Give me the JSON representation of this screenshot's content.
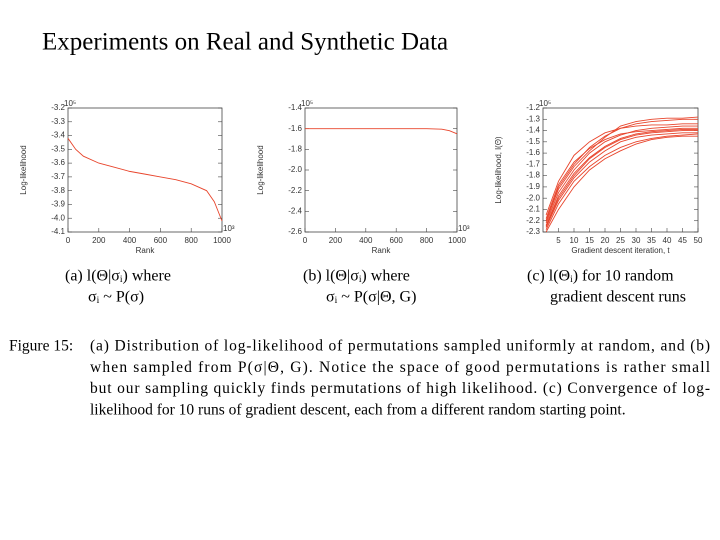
{
  "title": "Experiments on Real and Synthetic Data",
  "chart_data": [
    {
      "type": "line",
      "ylabel": "Log-likelihood",
      "xlabel": "Rank",
      "y_multiplier": "10⁵",
      "x_multiplier": "10³",
      "grid": false,
      "color": "#e8452c",
      "x": [
        0,
        50,
        100,
        200,
        300,
        400,
        500,
        600,
        700,
        800,
        900,
        950,
        1000
      ],
      "series": [
        {
          "values": [
            -3.42,
            -3.5,
            -3.55,
            -3.6,
            -3.63,
            -3.66,
            -3.68,
            -3.7,
            -3.72,
            -3.75,
            -3.8,
            -3.88,
            -4.02
          ]
        }
      ],
      "xlim": [
        0,
        1000
      ],
      "xticks": [
        0,
        200,
        400,
        600,
        800,
        1000
      ],
      "ylim": [
        -4.1,
        -3.2
      ],
      "yticks": [
        -3.2,
        -3.3,
        -3.4,
        -3.5,
        -3.6,
        -3.7,
        -3.8,
        -3.9,
        {
          "value": -4,
          "label": "-4.0"
        },
        -4.1
      ]
    },
    {
      "type": "line",
      "ylabel": "Log-likelihood",
      "xlabel": "Rank",
      "y_multiplier": "10⁵",
      "x_multiplier": "10³",
      "grid": false,
      "color": "#e8452c",
      "x": [
        0,
        100,
        200,
        300,
        400,
        500,
        600,
        700,
        800,
        900,
        950,
        1000
      ],
      "series": [
        {
          "values": [
            -1.6,
            -1.6,
            -1.6,
            -1.6,
            -1.6,
            -1.6,
            -1.6,
            -1.6,
            -1.6,
            -1.605,
            -1.62,
            -1.65
          ]
        }
      ],
      "xlim": [
        0,
        1000
      ],
      "xticks": [
        0,
        200,
        400,
        600,
        800,
        1000
      ],
      "ylim": [
        -2.6,
        -1.4
      ],
      "yticks": [
        -1.4,
        -1.6,
        -1.8,
        {
          "value": -2,
          "label": "-2.0"
        },
        -2.2,
        -2.4,
        -2.6
      ]
    },
    {
      "type": "line",
      "ylabel": "Log-likelihood, l(Θ)",
      "xlabel": "Gradient descent iteration, t",
      "y_multiplier": "10⁵",
      "grid": false,
      "color": "#e8452c",
      "x": [
        1,
        5,
        10,
        15,
        20,
        25,
        30,
        35,
        40,
        45,
        50
      ],
      "series": [
        {
          "values": [
            -2.25,
            -2.0,
            -1.8,
            -1.65,
            -1.55,
            -1.48,
            -1.44,
            -1.42,
            -1.41,
            -1.4,
            -1.4
          ]
        },
        {
          "values": [
            -2.2,
            -1.9,
            -1.7,
            -1.55,
            -1.45,
            -1.38,
            -1.34,
            -1.32,
            -1.31,
            -1.3,
            -1.3
          ]
        },
        {
          "values": [
            -2.28,
            -2.05,
            -1.85,
            -1.72,
            -1.62,
            -1.55,
            -1.5,
            -1.47,
            -1.45,
            -1.44,
            -1.43
          ]
        },
        {
          "values": [
            -2.15,
            -1.85,
            -1.62,
            -1.5,
            -1.42,
            -1.38,
            -1.36,
            -1.35,
            -1.35,
            -1.34,
            -1.34
          ]
        },
        {
          "values": [
            -2.3,
            -2.1,
            -1.9,
            -1.75,
            -1.65,
            -1.58,
            -1.52,
            -1.48,
            -1.46,
            -1.45,
            -1.45
          ]
        },
        {
          "values": [
            -2.22,
            -1.95,
            -1.75,
            -1.6,
            -1.5,
            -1.44,
            -1.4,
            -1.38,
            -1.37,
            -1.36,
            -1.36
          ]
        },
        {
          "values": [
            -2.18,
            -1.88,
            -1.68,
            -1.56,
            -1.48,
            -1.43,
            -1.41,
            -1.4,
            -1.39,
            -1.38,
            -1.38
          ]
        },
        {
          "values": [
            -2.26,
            -2.02,
            -1.82,
            -1.68,
            -1.58,
            -1.5,
            -1.46,
            -1.44,
            -1.43,
            -1.42,
            -1.42
          ]
        },
        {
          "values": [
            -2.2,
            -1.92,
            -1.72,
            -1.58,
            -1.46,
            -1.36,
            -1.32,
            -1.3,
            -1.29,
            -1.29,
            -1.28
          ]
        },
        {
          "values": [
            -2.24,
            -1.98,
            -1.78,
            -1.64,
            -1.54,
            -1.47,
            -1.43,
            -1.41,
            -1.4,
            -1.39,
            -1.39
          ]
        }
      ],
      "xlim": [
        0,
        50
      ],
      "xticks": [
        5,
        10,
        15,
        20,
        25,
        30,
        35,
        40,
        45,
        50
      ],
      "ylim": [
        -2.3,
        -1.2
      ],
      "yticks": [
        -1.2,
        -1.3,
        -1.4,
        -1.5,
        -1.6,
        -1.7,
        -1.8,
        -1.9,
        {
          "value": -2,
          "label": "-2.0"
        },
        -2.1,
        -2.2,
        -2.3
      ]
    }
  ],
  "subcaptions": [
    [
      "(a) l(Θ|σᵢ) where",
      "σᵢ ~ P(σ)"
    ],
    [
      "(b) l(Θ|σᵢ) where",
      "σᵢ ~ P(σ|Θ, G)"
    ],
    [
      "(c) l(Θᵢ) for 10 random",
      "gradient descent runs"
    ]
  ],
  "caption": {
    "label": "Figure 15:",
    "lines": [
      "(a) Distribution of log-likelihood of permutations sampled uniformly at random, and (b)",
      "when sampled from P(σ|Θ, G). Notice the space of good permutations is rather small",
      "but our sampling quickly finds permutations of high likelihood. (c) Convergence of log-",
      "likelihood for 10 runs of gradient descent, each from a different random starting point."
    ]
  }
}
